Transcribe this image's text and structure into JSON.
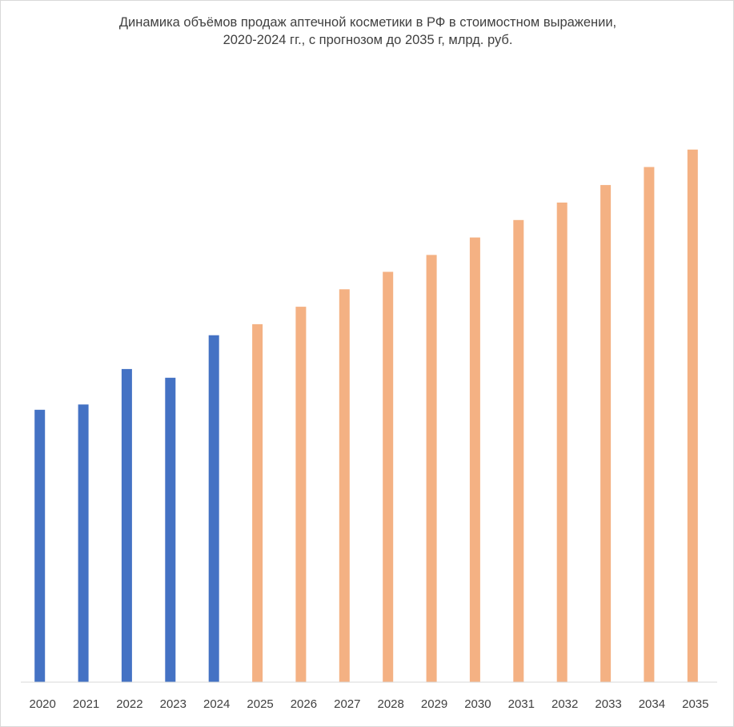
{
  "chart_data": {
    "type": "bar",
    "title_lines": [
      "Динамика  объёмов продаж аптечной  косметики в РФ в стоимостном выражении,",
      "2020-2024 гг., с прогнозом до 2035 г, млрд.  руб."
    ],
    "categories": [
      "2020",
      "2021",
      "2022",
      "2023",
      "2024",
      "2025",
      "2026",
      "2027",
      "2028",
      "2029",
      "2030",
      "2031",
      "2032",
      "2033",
      "2034",
      "2035"
    ],
    "series": [
      {
        "values": [
          46.8,
          47.7,
          53.8,
          52.3,
          59.6,
          null,
          null,
          null,
          null,
          null,
          null,
          null,
          null,
          null,
          null,
          null
        ],
        "color": "#4472c4"
      },
      {
        "values": [
          null,
          null,
          null,
          null,
          null,
          61.5,
          64.5,
          67.5,
          70.5,
          73.4,
          76.4,
          79.4,
          82.4,
          85.4,
          88.5,
          91.5
        ],
        "color": "#f4b183"
      }
    ],
    "ylim": [
      0,
      100
    ],
    "xlabel": "",
    "ylabel": "",
    "grid": false,
    "legend": "none"
  }
}
